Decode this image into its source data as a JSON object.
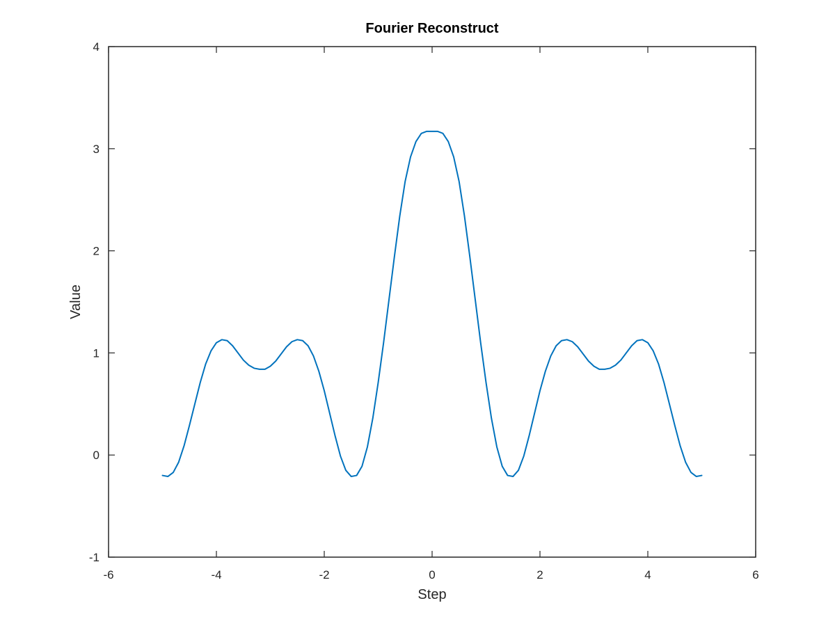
{
  "chart_data": {
    "type": "line",
    "title": "Fourier Reconstruct",
    "xlabel": "Step",
    "ylabel": "Value",
    "xlim": [
      -6,
      6
    ],
    "ylim": [
      -1,
      4
    ],
    "xticks": [
      -6,
      -4,
      -2,
      0,
      2,
      4,
      6
    ],
    "yticks": [
      -1,
      0,
      1,
      2,
      3,
      4
    ],
    "grid": false,
    "line_color": "#0072BD",
    "series": [
      {
        "x": [
          -5.0,
          -4.9,
          -4.8,
          -4.7,
          -4.6,
          -4.5,
          -4.4,
          -4.3,
          -4.2,
          -4.1,
          -4.0,
          -3.9,
          -3.8,
          -3.7,
          -3.6,
          -3.5,
          -3.4,
          -3.3,
          -3.2,
          -3.1,
          -3.0,
          -2.9,
          -2.8,
          -2.7,
          -2.6,
          -2.5,
          -2.4,
          -2.3,
          -2.2,
          -2.1,
          -2.0,
          -1.9,
          -1.8,
          -1.7,
          -1.6,
          -1.5,
          -1.4,
          -1.3,
          -1.2,
          -1.1,
          -1.0,
          -0.9,
          -0.8,
          -0.7,
          -0.6,
          -0.5,
          -0.4,
          -0.3,
          -0.2,
          -0.1,
          0.0,
          0.1,
          0.2,
          0.3,
          0.4,
          0.5,
          0.6,
          0.7,
          0.8,
          0.9,
          1.0,
          1.1,
          1.2,
          1.3,
          1.4,
          1.5,
          1.6,
          1.7,
          1.8,
          1.9,
          2.0,
          2.1,
          2.2,
          2.3,
          2.4,
          2.5,
          2.6,
          2.7,
          2.8,
          2.9,
          3.0,
          3.1,
          3.2,
          3.3,
          3.4,
          3.5,
          3.6,
          3.7,
          3.8,
          3.9,
          4.0,
          4.1,
          4.2,
          4.3,
          4.4,
          4.5,
          4.6,
          4.7,
          4.8,
          4.9,
          5.0
        ],
        "values": [
          -0.2,
          -0.21,
          -0.17,
          -0.07,
          0.09,
          0.29,
          0.5,
          0.71,
          0.89,
          1.02,
          1.1,
          1.13,
          1.12,
          1.07,
          1.0,
          0.93,
          0.88,
          0.85,
          0.84,
          0.84,
          0.87,
          0.92,
          0.99,
          1.06,
          1.11,
          1.13,
          1.12,
          1.07,
          0.97,
          0.82,
          0.63,
          0.41,
          0.19,
          -0.01,
          -0.15,
          -0.21,
          -0.2,
          -0.11,
          0.08,
          0.36,
          0.71,
          1.1,
          1.52,
          1.94,
          2.34,
          2.68,
          2.92,
          3.07,
          3.15,
          3.17,
          3.17,
          3.17,
          3.15,
          3.07,
          2.92,
          2.68,
          2.34,
          1.94,
          1.52,
          1.1,
          0.71,
          0.36,
          0.08,
          -0.11,
          -0.2,
          -0.21,
          -0.15,
          -0.01,
          0.19,
          0.41,
          0.63,
          0.82,
          0.97,
          1.07,
          1.12,
          1.13,
          1.11,
          1.06,
          0.99,
          0.92,
          0.87,
          0.84,
          0.84,
          0.85,
          0.88,
          0.93,
          1.0,
          1.07,
          1.12,
          1.13,
          1.1,
          1.02,
          0.89,
          0.71,
          0.5,
          0.29,
          0.09,
          -0.07,
          -0.17,
          -0.21,
          -0.2
        ]
      }
    ]
  }
}
